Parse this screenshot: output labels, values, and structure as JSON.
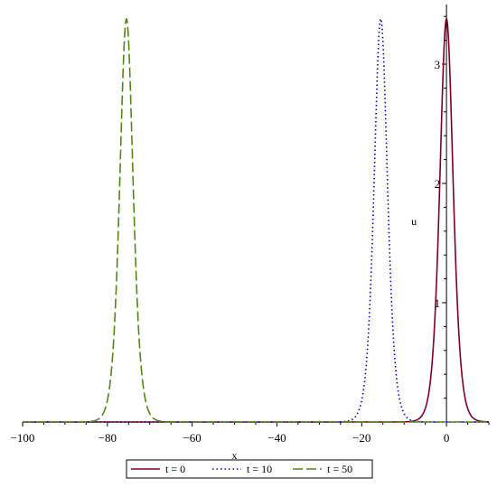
{
  "chart_data": {
    "type": "line",
    "title": "",
    "xlabel": "x",
    "ylabel": "u",
    "xlim": [
      -100,
      10
    ],
    "ylim": [
      0,
      3.5
    ],
    "x_ticks": [
      -100,
      -80,
      -60,
      -40,
      -20,
      0
    ],
    "y_ticks": [
      1,
      2,
      3
    ],
    "grid": false,
    "legend_position": "bottom",
    "series": [
      {
        "name": "t = 0",
        "color": "#800020",
        "style": "solid",
        "peak_x": 0,
        "peak_u": 3.38,
        "half_width": 2.1
      },
      {
        "name": "t = 10",
        "color": "#0000cc",
        "style": "dotted",
        "peak_x": -15.5,
        "peak_u": 3.38,
        "half_width": 2.1
      },
      {
        "name": "t = 50",
        "color": "#4f8a10",
        "style": "dashed",
        "peak_x": -75.5,
        "peak_u": 3.38,
        "half_width": 2.1
      }
    ]
  }
}
